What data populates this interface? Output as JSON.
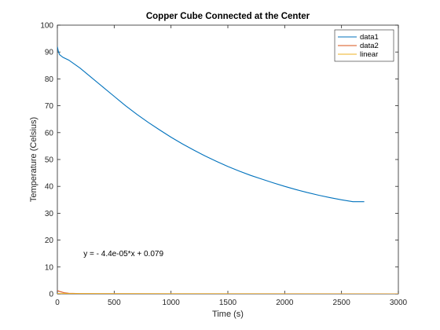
{
  "chart_data": {
    "type": "line",
    "title": "Copper Cube Connected at the Center",
    "xlabel": "Time (s)",
    "ylabel": "Temperature (Celsius)",
    "xlim": [
      0,
      3000
    ],
    "ylim": [
      0,
      100
    ],
    "xticks": [
      "0",
      "500",
      "1000",
      "1500",
      "2000",
      "2500",
      "3000"
    ],
    "xtick_values": [
      0,
      500,
      1000,
      1500,
      2000,
      2500,
      3000
    ],
    "yticks": [
      "0",
      "10",
      "20",
      "30",
      "40",
      "50",
      "60",
      "70",
      "80",
      "90",
      "100"
    ],
    "ytick_values": [
      0,
      10,
      20,
      30,
      40,
      50,
      60,
      70,
      80,
      90,
      100
    ],
    "grid": false,
    "legend_position": "top-right",
    "series": [
      {
        "name": "data1",
        "color": "#0072BD",
        "x": [
          0,
          10,
          20,
          50,
          100,
          200,
          300,
          400,
          500,
          600,
          700,
          800,
          900,
          1000,
          1100,
          1200,
          1300,
          1400,
          1500,
          1600,
          1700,
          1800,
          1900,
          2000,
          2100,
          2200,
          2300,
          2400,
          2500,
          2600,
          2700
        ],
        "y": [
          92,
          90,
          89,
          88,
          87,
          84,
          80.5,
          77,
          73.5,
          70,
          66.8,
          63.8,
          61,
          58.3,
          55.8,
          53.5,
          51.3,
          49.3,
          47.4,
          45.7,
          44.1,
          42.7,
          41.3,
          40,
          38.8,
          37.7,
          36.7,
          35.8,
          35,
          34.3,
          34.3
        ]
      },
      {
        "name": "data2",
        "color": "#D95319",
        "x": [
          0,
          20,
          60,
          100,
          200,
          500,
          1000,
          2000,
          3000
        ],
        "y": [
          1.2,
          0.9,
          0.4,
          0.2,
          0.1,
          0.05,
          0.02,
          0.01,
          0.0
        ]
      },
      {
        "name": "linear",
        "color": "#EDB120",
        "x": [
          0,
          3000
        ],
        "y": [
          0.079,
          -0.053
        ]
      }
    ],
    "annotations": [
      {
        "text": "y = - 4.4e-05*x + 0.079",
        "x": 230,
        "y": 15
      }
    ]
  }
}
